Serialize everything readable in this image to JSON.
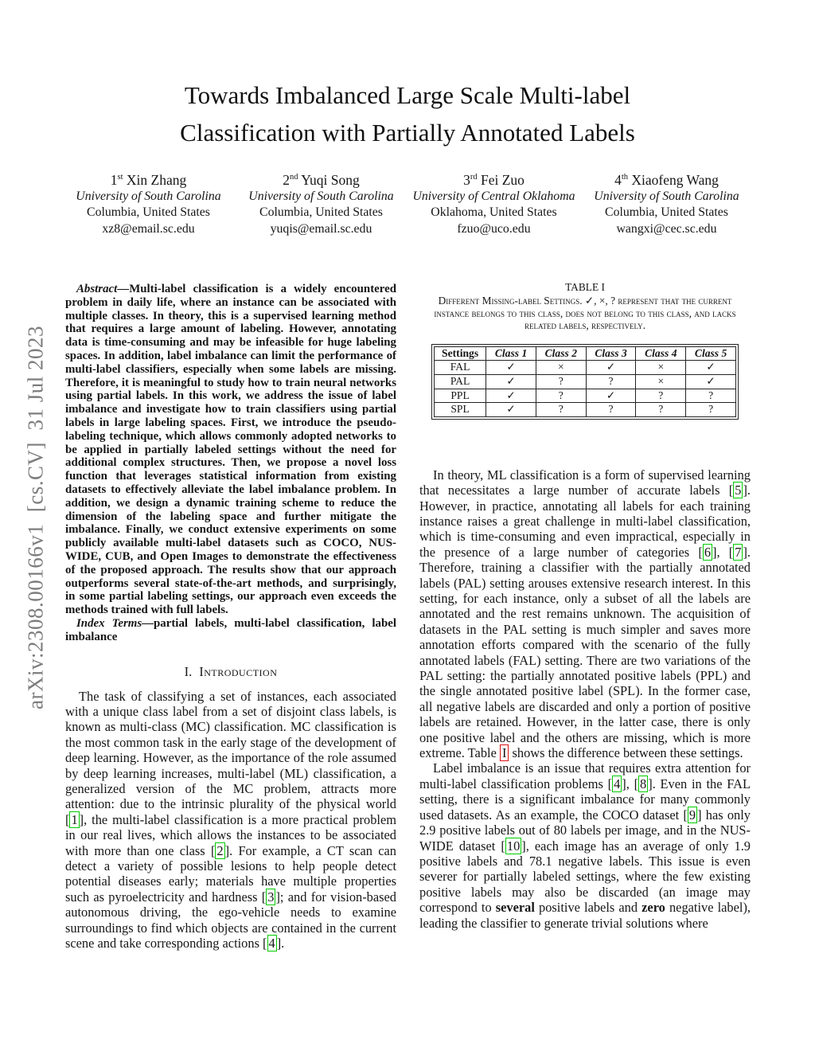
{
  "watermark": "arXiv:2308.00166v1  [cs.CV]  31 Jul 2023",
  "title": {
    "line1": "Towards Imbalanced Large Scale Multi-label",
    "line2": "Classification with Partially Annotated Labels"
  },
  "authors": [
    {
      "order": "1",
      "ordinal": "st",
      "name": "Xin Zhang",
      "affiliation": "University of South Carolina",
      "location": "Columbia, United States",
      "email": "xz8@email.sc.edu"
    },
    {
      "order": "2",
      "ordinal": "nd",
      "name": "Yuqi Song",
      "affiliation": "University of South Carolina",
      "location": "Columbia, United States",
      "email": "yuqis@email.sc.edu"
    },
    {
      "order": "3",
      "ordinal": "rd",
      "name": "Fei Zuo",
      "affiliation": "University of Central Oklahoma",
      "location": "Oklahoma, United States",
      "email": "fzuo@uco.edu"
    },
    {
      "order": "4",
      "ordinal": "th",
      "name": "Xiaofeng Wang",
      "affiliation": "University of South Carolina",
      "location": "Columbia, United States",
      "email": "wangxi@cec.sc.edu"
    }
  ],
  "abstract": {
    "label": "Abstract",
    "text": "—Multi-label classification is a widely encountered problem in daily life, where an instance can be associated with multiple classes. In theory, this is a supervised learning method that requires a large amount of labeling. However, annotating data is time-consuming and may be infeasible for huge labeling spaces. In addition, label imbalance can limit the performance of multi-label classifiers, especially when some labels are missing. Therefore, it is meaningful to study how to train neural networks using partial labels. In this work, we address the issue of label imbalance and investigate how to train classifiers using partial labels in large labeling spaces. First, we introduce the pseudo-labeling technique, which allows commonly adopted networks to be applied in partially labeled settings without the need for additional complex structures. Then, we propose a novel loss function that leverages statistical information from existing datasets to effectively alleviate the label imbalance problem. In addition, we design a dynamic training scheme to reduce the dimension of the labeling space and further mitigate the imbalance. Finally, we conduct extensive experiments on some publicly available multi-label datasets such as COCO, NUS-WIDE, CUB, and Open Images to demonstrate the effectiveness of the proposed approach. The results show that our approach outperforms several state-of-the-art methods, and surprisingly, in some partial labeling settings, our approach even exceeds the methods trained with full labels."
  },
  "index_terms": {
    "label": "Index Terms",
    "text": "—partial labels, multi-label classification, label imbalance"
  },
  "section1": {
    "number": "I.",
    "title": "Introduction"
  },
  "intro_p1": "The task of classifying a set of instances, each associated with a unique class label from a set of disjoint class labels, is known as multi-class (MC) classification. MC classification is the most common task in the early stage of the development of deep learning. However, as the importance of the role assumed by deep learning increases, multi-label (ML) classification, a generalized version of the MC problem, attracts more attention: due to the intrinsic plurality of the physical world [[1]], the multi-label classification is a more practical problem in our real lives, which allows the instances to be associated with more than one class [[2]]. For example, a CT scan can detect a variety of possible lesions to help people detect potential diseases early; materials have multiple properties such as pyroelectricity and hardness [[3]]; and for vision-based autonomous driving, the ego-vehicle needs to examine surroundings to find which objects are contained in the current scene and take corresponding actions [[4]].",
  "table1": {
    "label": "TABLE I",
    "caption": "Different Missing-label Settings. ✓, ×, ? represent that the current instance belongs to this class, does not belong to this class, and lacks related labels, respectively.",
    "headers": [
      "Settings",
      "Class 1",
      "Class 2",
      "Class 3",
      "Class 4",
      "Class 5"
    ],
    "rows": [
      {
        "setting": "FAL",
        "cells": [
          "✓",
          "×",
          "✓",
          "×",
          "✓"
        ]
      },
      {
        "setting": "PAL",
        "cells": [
          "✓",
          "?",
          "?",
          "×",
          "✓"
        ]
      },
      {
        "setting": "PPL",
        "cells": [
          "✓",
          "?",
          "✓",
          "?",
          "?"
        ]
      },
      {
        "setting": "SPL",
        "cells": [
          "✓",
          "?",
          "?",
          "?",
          "?"
        ]
      }
    ]
  },
  "right_p1": "In theory, ML classification is a form of supervised learning that necessitates a large number of accurate labels [[5]]. However, in practice, annotating all labels for each training instance raises a great challenge in multi-label classification, which is time-consuming and even impractical, especially in the presence of a large number of categories [[6]], [[7]]. Therefore, training a classifier with the partially annotated labels (PAL) setting arouses extensive research interest. In this setting, for each instance, only a subset of all the labels are annotated and the rest remains unknown. The acquisition of datasets in the PAL setting is much simpler and saves more annotation efforts compared with the scenario of the fully annotated labels (FAL) setting. There are two variations of the PAL setting: the partially annotated positive labels (PPL) and the single annotated positive label (SPL). In the former case, all negative labels are discarded and only a portion of positive labels are retained. However, in the latter case, there is only one positive label and the others are missing, which is more extreme. Table {{I}} shows the difference between these settings.",
  "right_p2": "Label imbalance is an issue that requires extra attention for multi-label classification problems [[4]], [[8]]. Even in the FAL setting, there is a significant imbalance for many commonly used datasets. As an example, the COCO dataset [[9]] has only 2.9 positive labels out of 80 labels per image, and in the NUS-WIDE dataset [[10]], each image has an average of only 1.9 positive labels and 78.1 negative labels. This issue is even severer for partially labeled settings, where the few existing positive labels may also be discarded (an image may correspond to **several** positive labels and **zero** negative label), leading the classifier to generate trivial solutions where",
  "colors": {
    "citation_box": "#00cc00",
    "ref_box": "#dd1111",
    "watermark_gray": "#7d7d7d"
  }
}
